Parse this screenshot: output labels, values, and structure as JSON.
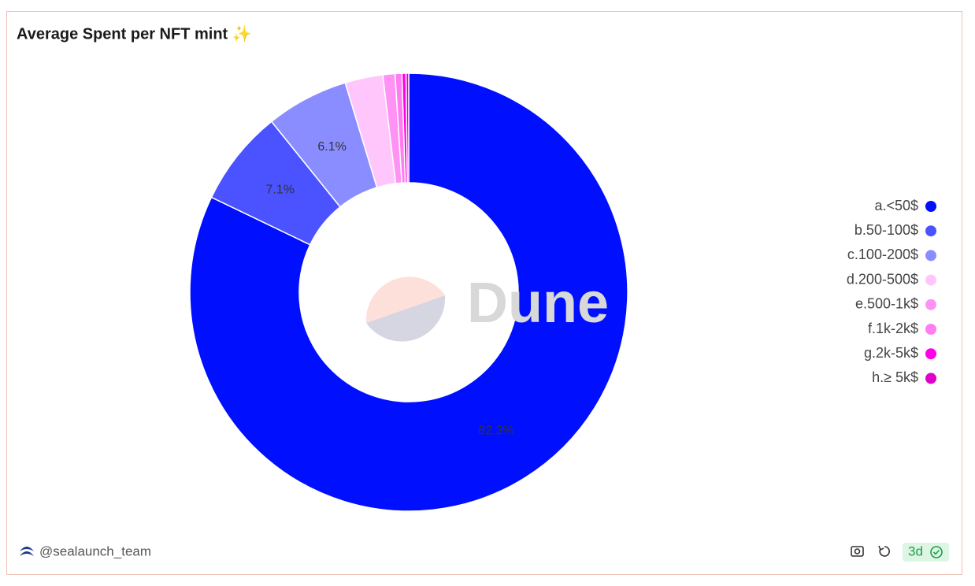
{
  "chart_data": {
    "type": "pie",
    "title": "Average Spent per NFT mint ✨",
    "categories": [
      "a.<50$",
      "b.50-100$",
      "c.100-200$",
      "d.200-500$",
      "e.500-1k$",
      "f.1k-2k$",
      "g.2k-5k$",
      "h.≥ 5k$"
    ],
    "values": [
      82.3,
      7.1,
      6.1,
      2.8,
      0.9,
      0.5,
      0.3,
      0.2
    ],
    "value_labels": [
      "82.3%",
      "7.1%",
      "6.1%",
      null,
      null,
      null,
      null,
      null
    ],
    "colors": [
      "#0010ff",
      "#4b52ff",
      "#8a8dff",
      "#ffc6fb",
      "#ff93f5",
      "#ff7df0",
      "#ff00e8",
      "#e000cc"
    ],
    "donut": true,
    "legend": "right"
  },
  "watermark": "Dune",
  "footer": {
    "author": "@sealaunch_team",
    "badge": "3d"
  }
}
